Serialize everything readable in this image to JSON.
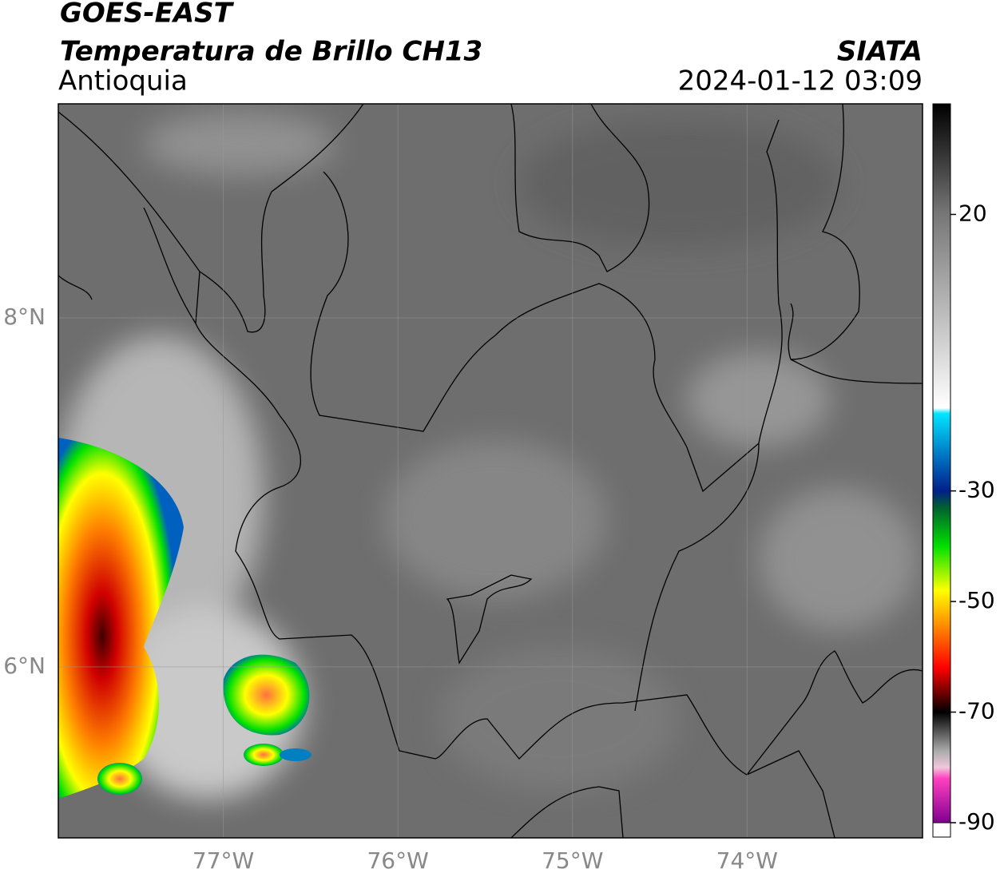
{
  "header": {
    "title": "GOES-EAST",
    "subtitle": "Temperatura de Brillo CH13",
    "region": "Antioquia",
    "source": "SIATA",
    "datetime": "2024-01-12 03:09"
  },
  "map": {
    "lonlim": [
      -77.945,
      -72.995
    ],
    "latlim": [
      5.02,
      9.227
    ],
    "lonticks": [
      {
        "value": -77,
        "label": "77°W"
      },
      {
        "value": -76,
        "label": "76°W"
      },
      {
        "value": -75,
        "label": "75°W"
      },
      {
        "value": -74,
        "label": "74°W"
      }
    ],
    "latticks": [
      {
        "value": 8,
        "label": "8°N"
      },
      {
        "value": 6,
        "label": "6°N"
      }
    ],
    "grid": true
  },
  "colorbar": {
    "lim": [
      -90,
      40
    ],
    "ticks": [
      -90,
      -70,
      -50,
      -30,
      20
    ],
    "stops": [
      {
        "value": 40,
        "color": "#000000"
      },
      {
        "value": 30,
        "color": "#3a3a3a"
      },
      {
        "value": 20,
        "color": "#777777"
      },
      {
        "value": 0,
        "color": "#c4c4c4"
      },
      {
        "value": -15,
        "color": "#ffffff"
      },
      {
        "value": -16,
        "color": "#00e5ff"
      },
      {
        "value": -24,
        "color": "#0070c0"
      },
      {
        "value": -30,
        "color": "#00208a"
      },
      {
        "value": -33,
        "color": "#006030"
      },
      {
        "value": -40,
        "color": "#00e000"
      },
      {
        "value": -48,
        "color": "#ffff00"
      },
      {
        "value": -55,
        "color": "#ff8000"
      },
      {
        "value": -62,
        "color": "#ff0000"
      },
      {
        "value": -67,
        "color": "#600000"
      },
      {
        "value": -70,
        "color": "#000000"
      },
      {
        "value": -77,
        "color": "#aaaaaa"
      },
      {
        "value": -80,
        "color": "#f0c8dc"
      },
      {
        "value": -82,
        "color": "#ff40c0"
      },
      {
        "value": -90,
        "color": "#800090"
      }
    ],
    "under_color": "#ffffff"
  }
}
